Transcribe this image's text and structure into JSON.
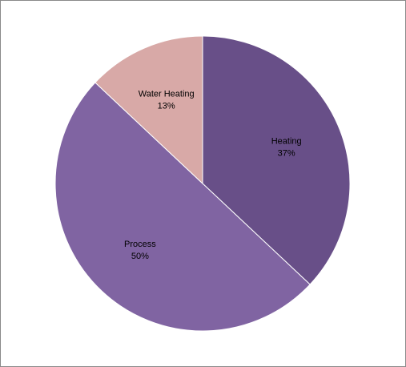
{
  "chart_data": {
    "type": "pie",
    "title": "",
    "legend": "none",
    "start_angle_deg": 0,
    "direction": "clockwise",
    "slices": [
      {
        "name": "Heating",
        "value": 37,
        "label": "37%",
        "color": "#684F88"
      },
      {
        "name": "Process",
        "value": 50,
        "label": "50%",
        "color": "#8064A2"
      },
      {
        "name": "Water Heating",
        "value": 13,
        "label": "13%",
        "color": "#D8A9A7"
      }
    ]
  }
}
